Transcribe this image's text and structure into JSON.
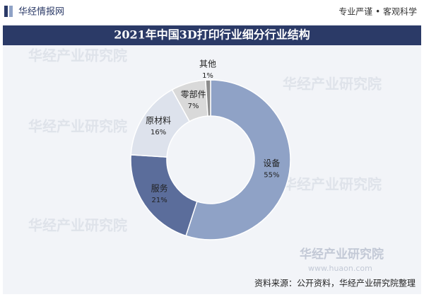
{
  "header": {
    "brand": "华经情报网",
    "slogan": "专业严谨 • 客观科学"
  },
  "chart_data": {
    "type": "pie",
    "donut": true,
    "title": "2021年中国3D打印行业细分行业结构",
    "categories": [
      "设备",
      "服务",
      "原材料",
      "零部件",
      "其他"
    ],
    "values": [
      55,
      21,
      16,
      7,
      1
    ],
    "value_labels": [
      "55%",
      "21%",
      "16%",
      "7%",
      "1%"
    ],
    "colors": [
      "#8fa2c6",
      "#5b6d9b",
      "#dde2ec",
      "#d9d9d9",
      "#8c8c8c"
    ]
  },
  "watermark": "华经产业研究院",
  "logo": {
    "name": "华经产业研究院",
    "url": "www.huaon.com"
  },
  "footer": {
    "source": "资料来源：公开资料，华经产业研究院整理"
  }
}
